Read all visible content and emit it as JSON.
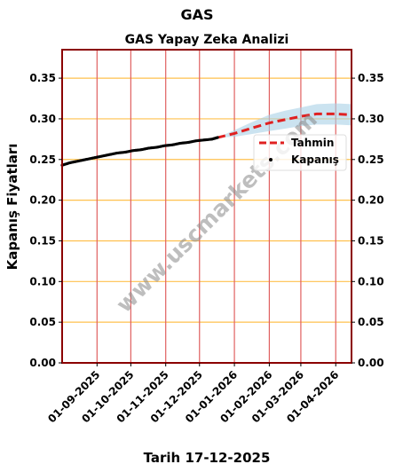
{
  "page_title": "GAS",
  "chart_data": {
    "type": "line",
    "title": "GAS Yapay Zeka Analizi",
    "ylabel": "Kapanış Fiyatları",
    "xlabel": "Tarih 17-12-2025",
    "ylim": [
      0,
      0.385
    ],
    "xlim": [
      "2025-08-01",
      "2026-04-15"
    ],
    "yticks": [
      0.0,
      0.05,
      0.1,
      0.15,
      0.2,
      0.25,
      0.3,
      0.35
    ],
    "ytick_labels": [
      "0.00",
      "0.05",
      "0.10",
      "0.15",
      "0.20",
      "0.25",
      "0.30",
      "0.35"
    ],
    "xticks": [
      "2025-09-01",
      "2025-10-01",
      "2025-11-01",
      "2025-12-01",
      "2026-01-01",
      "2026-02-01",
      "2026-03-01",
      "2026-04-01"
    ],
    "xtick_labels": [
      "01-09-2025",
      "01-10-2025",
      "01-11-2025",
      "01-12-2025",
      "01-01-2026",
      "01-02-2026",
      "01-03-2026",
      "01-04-2026"
    ],
    "grid": {
      "horizontal_color": "#ffc04d",
      "vertical_color": "#e06060"
    },
    "legend": {
      "placement": "right",
      "entries": [
        "Tahmin",
        "Kapanış"
      ]
    },
    "series": [
      {
        "name": "Kapanış",
        "style": "points",
        "color": "#000000",
        "points": [
          [
            "2025-08-01",
            0.243
          ],
          [
            "2025-08-08",
            0.246
          ],
          [
            "2025-08-15",
            0.248
          ],
          [
            "2025-08-22",
            0.25
          ],
          [
            "2025-08-29",
            0.252
          ],
          [
            "2025-09-05",
            0.254
          ],
          [
            "2025-09-12",
            0.256
          ],
          [
            "2025-09-19",
            0.258
          ],
          [
            "2025-09-26",
            0.259
          ],
          [
            "2025-10-03",
            0.261
          ],
          [
            "2025-10-10",
            0.262
          ],
          [
            "2025-10-17",
            0.264
          ],
          [
            "2025-10-24",
            0.265
          ],
          [
            "2025-10-31",
            0.267
          ],
          [
            "2025-11-07",
            0.268
          ],
          [
            "2025-11-14",
            0.27
          ],
          [
            "2025-11-21",
            0.271
          ],
          [
            "2025-11-28",
            0.273
          ],
          [
            "2025-12-05",
            0.274
          ],
          [
            "2025-12-12",
            0.275
          ],
          [
            "2025-12-17",
            0.277
          ]
        ]
      },
      {
        "name": "Tahmin",
        "style": "dashed",
        "color": "#e02020",
        "points": [
          [
            "2025-12-17",
            0.277
          ],
          [
            "2026-01-01",
            0.282
          ],
          [
            "2026-01-15",
            0.288
          ],
          [
            "2026-02-01",
            0.295
          ],
          [
            "2026-02-15",
            0.299
          ],
          [
            "2026-03-01",
            0.303
          ],
          [
            "2026-03-15",
            0.306
          ],
          [
            "2026-04-01",
            0.306
          ],
          [
            "2026-04-15",
            0.305
          ]
        ],
        "band": {
          "color": "#a8d0e6",
          "lower": [
            0.277,
            0.278,
            0.281,
            0.285,
            0.288,
            0.291,
            0.293,
            0.293,
            0.292
          ],
          "upper": [
            0.277,
            0.286,
            0.295,
            0.305,
            0.31,
            0.314,
            0.318,
            0.319,
            0.318
          ]
        }
      }
    ]
  },
  "watermark": "www.uscmarkets.com"
}
